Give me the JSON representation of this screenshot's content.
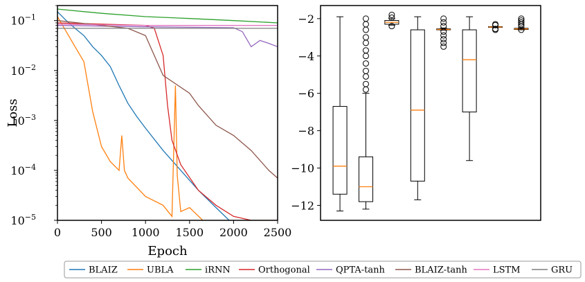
{
  "chart_data": [
    {
      "type": "line",
      "xlabel": "Epoch",
      "ylabel": "Loss",
      "xlim": [
        0,
        2500
      ],
      "ylim": [
        1e-05,
        0.2
      ],
      "yscale": "log",
      "x_ticks": [
        "0",
        "500",
        "1000",
        "1500",
        "2000",
        "2500"
      ],
      "y_ticks": [
        "10^{-5}",
        "10^{-4}",
        "10^{-3}",
        "10^{-2}",
        "10^{-1}"
      ],
      "y_tick_parts": [
        {
          "base": "10",
          "exp": "−5"
        },
        {
          "base": "10",
          "exp": "−4"
        },
        {
          "base": "10",
          "exp": "−3"
        },
        {
          "base": "10",
          "exp": "−2"
        },
        {
          "base": "10",
          "exp": "−1"
        }
      ],
      "series": [
        {
          "name": "BLAIZ",
          "color": "#1f77b4",
          "x": [
            0,
            100,
            200,
            300,
            400,
            500,
            600,
            700,
            800,
            900,
            1000,
            1200,
            1400,
            1600,
            1800,
            1950
          ],
          "y": [
            0.15,
            0.1,
            0.07,
            0.05,
            0.03,
            0.02,
            0.012,
            0.005,
            0.0022,
            0.0012,
            0.0007,
            0.00025,
            0.0001,
            4e-05,
            1.8e-05,
            1e-05
          ]
        },
        {
          "name": "UBLA",
          "color": "#ff7f0e",
          "x": [
            0,
            100,
            200,
            300,
            400,
            500,
            600,
            700,
            730,
            760,
            800,
            1000,
            1200,
            1300,
            1340,
            1360,
            1400,
            1500,
            1650
          ],
          "y": [
            0.12,
            0.06,
            0.03,
            0.015,
            0.0015,
            0.0003,
            0.00015,
            0.0001,
            0.0005,
            0.0001,
            7e-05,
            3e-05,
            2e-05,
            1.2e-05,
            0.005,
            8e-05,
            1.5e-05,
            1.8e-05,
            1e-05
          ]
        },
        {
          "name": "iRNN",
          "color": "#2ca02c",
          "x": [
            0,
            500,
            1000,
            1500,
            2000,
            2500
          ],
          "y": [
            0.17,
            0.14,
            0.12,
            0.11,
            0.1,
            0.09
          ]
        },
        {
          "name": "Orthogonal",
          "color": "#d62728",
          "x": [
            0,
            1000,
            1100,
            1200,
            1250,
            1300,
            1400,
            1600,
            1800,
            2000,
            2200,
            2500
          ],
          "y": [
            0.09,
            0.08,
            0.07,
            0.02,
            0.002,
            0.0004,
            0.00013,
            4e-05,
            2e-05,
            1.2e-05,
            1e-05,
            1e-05
          ]
        },
        {
          "name": "QPTA-tanh",
          "color": "#9467bd",
          "x": [
            0,
            1000,
            2000,
            2100,
            2200,
            2300,
            2400,
            2500
          ],
          "y": [
            0.08,
            0.075,
            0.072,
            0.06,
            0.03,
            0.04,
            0.035,
            0.03
          ]
        },
        {
          "name": "BLAIZ-tanh",
          "color": "#8c564b",
          "x": [
            0,
            800,
            1000,
            1100,
            1200,
            1500,
            1600,
            1800,
            2000,
            2200,
            2400,
            2500
          ],
          "y": [
            0.1,
            0.07,
            0.05,
            0.02,
            0.008,
            0.0035,
            0.002,
            0.0008,
            0.0005,
            0.00025,
            0.0001,
            7e-05
          ]
        },
        {
          "name": "LSTM",
          "color": "#e377c2",
          "x": [
            0,
            500,
            1000,
            1500,
            2000,
            2500
          ],
          "y": [
            0.085,
            0.082,
            0.08,
            0.08,
            0.08,
            0.08
          ]
        },
        {
          "name": "GRU",
          "color": "#7f7f7f",
          "x": [
            0,
            500,
            1000,
            1500,
            2000,
            2500
          ],
          "y": [
            0.07,
            0.07,
            0.07,
            0.07,
            0.07,
            0.07
          ]
        }
      ],
      "grid": false
    },
    {
      "type": "box",
      "ylim": [
        -12.8,
        -1.3
      ],
      "y_ticks": [
        "−2",
        "−4",
        "−6",
        "−8",
        "−10",
        "−12"
      ],
      "y_tick_values": [
        -2,
        -4,
        -6,
        -8,
        -10,
        -12
      ],
      "boxes": [
        {
          "whisker_low": -12.3,
          "q1": -11.4,
          "median": -9.9,
          "q3": -6.7,
          "whisker_high": -1.9,
          "outliers": []
        },
        {
          "whisker_low": -12.2,
          "q1": -11.8,
          "median": -11.0,
          "q3": -9.4,
          "whisker_high": -6.0,
          "outliers": [
            -2.0,
            -2.3,
            -2.6,
            -3.0,
            -3.3,
            -3.7,
            -4.0,
            -4.4,
            -4.8,
            -5.1,
            -5.5,
            -5.8
          ]
        },
        {
          "whisker_low": -2.35,
          "q1": -2.3,
          "median": -2.2,
          "q3": -2.1,
          "whisker_high": -2.0,
          "outliers": [
            -1.8,
            -1.95,
            -2.4
          ]
        },
        {
          "whisker_low": -11.7,
          "q1": -10.7,
          "median": -6.9,
          "q3": -2.6,
          "whisker_high": -1.9,
          "outliers": []
        },
        {
          "whisker_low": -2.62,
          "q1": -2.6,
          "median": -2.58,
          "q3": -2.55,
          "whisker_high": -2.5,
          "outliers": [
            -2.0,
            -2.2,
            -2.4,
            -2.7,
            -2.9,
            -3.1,
            -3.3,
            -3.5
          ]
        },
        {
          "whisker_low": -9.6,
          "q1": -7.0,
          "median": -4.2,
          "q3": -2.6,
          "whisker_high": -1.9,
          "outliers": []
        },
        {
          "whisker_low": -2.48,
          "q1": -2.46,
          "median": -2.45,
          "q3": -2.43,
          "whisker_high": -2.42,
          "outliers": [
            -2.3,
            -2.35,
            -2.55,
            -2.6
          ]
        },
        {
          "whisker_low": -2.6,
          "q1": -2.58,
          "median": -2.55,
          "q3": -2.52,
          "whisker_high": -2.5,
          "outliers": [
            -2.0,
            -2.1,
            -2.2,
            -2.3,
            -2.4,
            -2.6
          ]
        }
      ],
      "box_color": "#000000",
      "median_color": "#ff7f0e"
    }
  ],
  "legend": {
    "placement": "bottom",
    "entries": [
      {
        "label": "BLAIZ",
        "color": "#1f77b4"
      },
      {
        "label": "UBLA",
        "color": "#ff7f0e"
      },
      {
        "label": "iRNN",
        "color": "#2ca02c"
      },
      {
        "label": "Orthogonal",
        "color": "#d62728"
      },
      {
        "label": "QPTA-tanh",
        "color": "#9467bd"
      },
      {
        "label": "BLAIZ-tanh",
        "color": "#8c564b"
      },
      {
        "label": "LSTM",
        "color": "#e377c2"
      },
      {
        "label": "GRU",
        "color": "#7f7f7f"
      }
    ]
  }
}
